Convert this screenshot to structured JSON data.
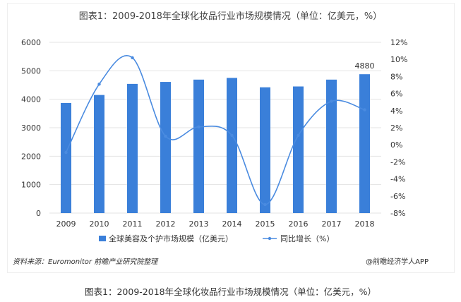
{
  "chart_data": {
    "type": "bar+line",
    "title": "图表1：2009-2018年全球化妆品行业市场规模情况（单位：亿美元，%）",
    "categories": [
      "2009",
      "2010",
      "2011",
      "2012",
      "2013",
      "2014",
      "2015",
      "2016",
      "2017",
      "2018"
    ],
    "series": [
      {
        "name": "全球美容及个护市场规模（亿美元）",
        "type": "bar",
        "axis": "left",
        "color": "#3a7fd9",
        "values": [
          3870,
          4150,
          4540,
          4610,
          4690,
          4750,
          4420,
          4450,
          4690,
          4880
        ]
      },
      {
        "name": "同比增长（%）",
        "type": "line",
        "axis": "right",
        "color": "#4a8be0",
        "values": [
          -0.9,
          7.1,
          10.2,
          1.0,
          2.1,
          1.1,
          -7.0,
          1.1,
          5.1,
          4.1
        ]
      }
    ],
    "data_labels": {
      "2018": "4880"
    },
    "left_axis": {
      "ylim": [
        0,
        6000
      ],
      "ticks": [
        "0",
        "1000",
        "2000",
        "3000",
        "4000",
        "5000",
        "6000"
      ]
    },
    "right_axis": {
      "ylim": [
        -8,
        12
      ],
      "ticks": [
        "-8%",
        "-6%",
        "-4%",
        "-2%",
        "0%",
        "2%",
        "4%",
        "6%",
        "8%",
        "10%",
        "12%"
      ]
    },
    "grid": true,
    "legend": "bottom"
  },
  "source": "资料来源：Euromonitor  前瞻产业研究院整理",
  "logo": "@前瞻经济学人APP",
  "caption": "图表1：2009-2018年全球化妆品行业市场规模情况（单位：亿美元，%）"
}
